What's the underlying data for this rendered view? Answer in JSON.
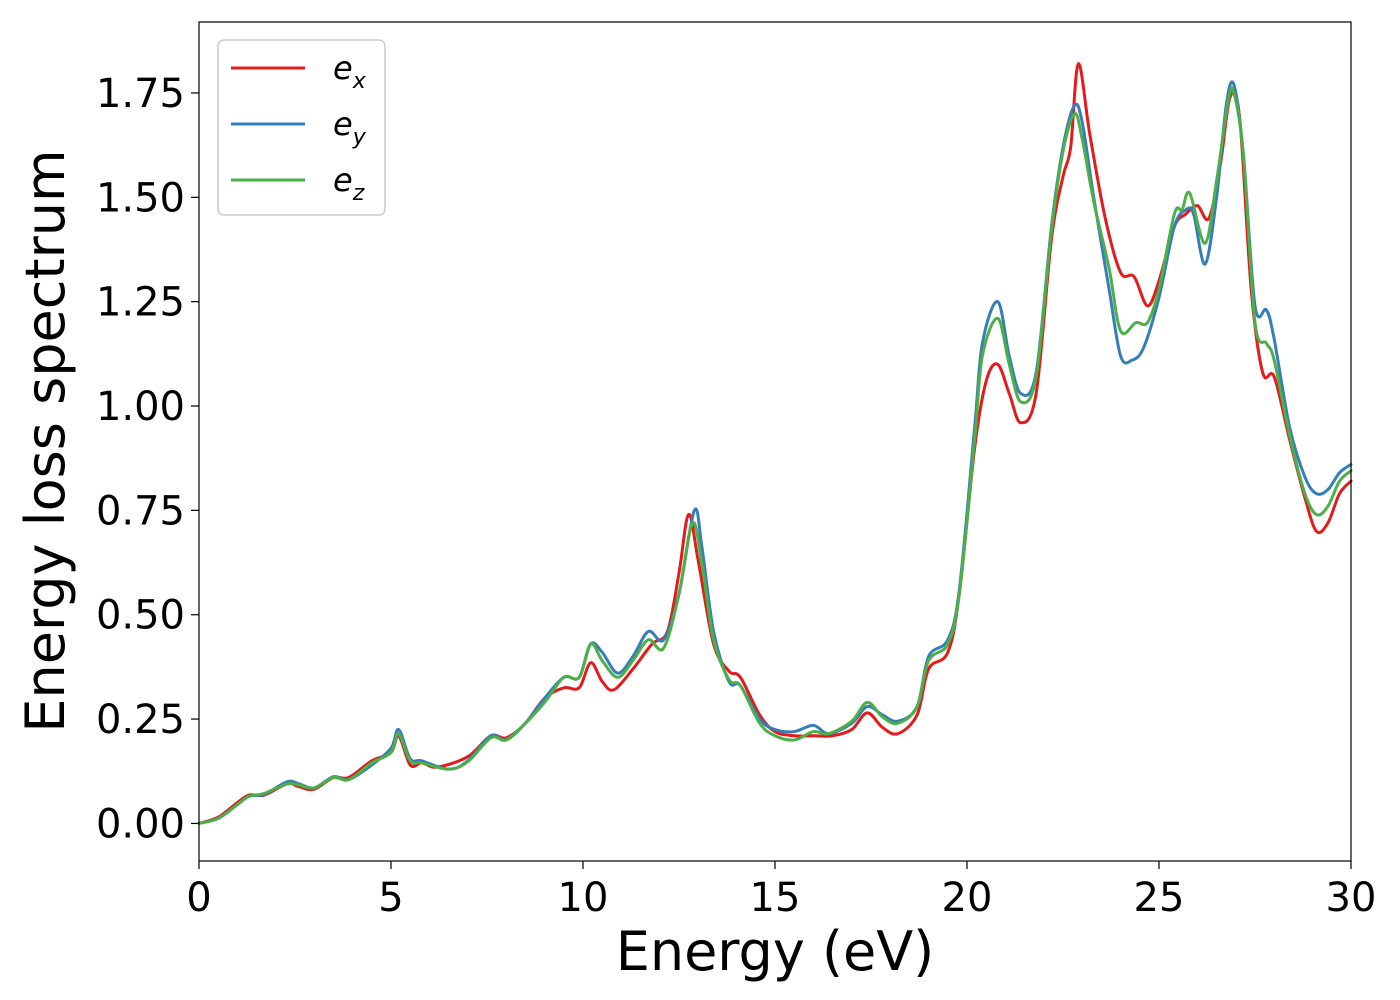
{
  "chart_data": {
    "type": "line",
    "title": "",
    "xlabel": "Energy (eV)",
    "ylabel": "Energy loss spectrum",
    "xlim": [
      0,
      30
    ],
    "ylim": [
      -0.09,
      1.92
    ],
    "xticks": [
      0,
      5,
      10,
      15,
      20,
      25,
      30
    ],
    "xtick_labels": [
      "0",
      "5",
      "10",
      "15",
      "20",
      "25",
      "30"
    ],
    "yticks": [
      0,
      0.25,
      0.5,
      0.75,
      1.0,
      1.25,
      1.5,
      1.75
    ],
    "ytick_labels": [
      "0.00",
      "0.25",
      "0.50",
      "0.75",
      "1.00",
      "1.25",
      "1.50",
      "1.75"
    ],
    "grid": false,
    "legend_position": "top-left",
    "series": [
      {
        "name": "e_x",
        "label_base": "e",
        "label_sub": "x",
        "color": "#e41a1c",
        "points": [
          [
            0,
            0
          ],
          [
            0.5,
            0.015
          ],
          [
            1,
            0.05
          ],
          [
            1.3,
            0.068
          ],
          [
            1.7,
            0.068
          ],
          [
            2.3,
            0.095
          ],
          [
            2.6,
            0.088
          ],
          [
            3.0,
            0.082
          ],
          [
            3.5,
            0.11
          ],
          [
            3.9,
            0.11
          ],
          [
            4.5,
            0.15
          ],
          [
            5.0,
            0.17
          ],
          [
            5.2,
            0.21
          ],
          [
            5.5,
            0.14
          ],
          [
            5.8,
            0.145
          ],
          [
            6.2,
            0.135
          ],
          [
            7.0,
            0.16
          ],
          [
            7.6,
            0.21
          ],
          [
            8.0,
            0.205
          ],
          [
            8.5,
            0.24
          ],
          [
            9.0,
            0.3
          ],
          [
            9.5,
            0.325
          ],
          [
            9.9,
            0.325
          ],
          [
            10.2,
            0.385
          ],
          [
            10.5,
            0.34
          ],
          [
            10.8,
            0.32
          ],
          [
            11.3,
            0.37
          ],
          [
            11.8,
            0.43
          ],
          [
            12.2,
            0.46
          ],
          [
            12.5,
            0.6
          ],
          [
            12.75,
            0.74
          ],
          [
            13.0,
            0.63
          ],
          [
            13.4,
            0.43
          ],
          [
            13.8,
            0.365
          ],
          [
            14.1,
            0.35
          ],
          [
            14.6,
            0.26
          ],
          [
            15.0,
            0.22
          ],
          [
            15.5,
            0.21
          ],
          [
            16.0,
            0.21
          ],
          [
            16.5,
            0.21
          ],
          [
            17.0,
            0.225
          ],
          [
            17.4,
            0.265
          ],
          [
            17.8,
            0.23
          ],
          [
            18.2,
            0.215
          ],
          [
            18.7,
            0.26
          ],
          [
            19.0,
            0.37
          ],
          [
            19.5,
            0.41
          ],
          [
            19.8,
            0.55
          ],
          [
            20.2,
            0.9
          ],
          [
            20.5,
            1.06
          ],
          [
            20.8,
            1.1
          ],
          [
            21.1,
            1.03
          ],
          [
            21.4,
            0.96
          ],
          [
            21.8,
            1.03
          ],
          [
            22.2,
            1.4
          ],
          [
            22.5,
            1.55
          ],
          [
            22.7,
            1.62
          ],
          [
            22.9,
            1.82
          ],
          [
            23.2,
            1.65
          ],
          [
            23.6,
            1.45
          ],
          [
            24.0,
            1.32
          ],
          [
            24.35,
            1.31
          ],
          [
            24.7,
            1.24
          ],
          [
            25.0,
            1.3
          ],
          [
            25.4,
            1.43
          ],
          [
            25.7,
            1.46
          ],
          [
            26.0,
            1.48
          ],
          [
            26.3,
            1.45
          ],
          [
            26.6,
            1.58
          ],
          [
            26.85,
            1.74
          ],
          [
            27.1,
            1.69
          ],
          [
            27.4,
            1.28
          ],
          [
            27.7,
            1.08
          ],
          [
            28.0,
            1.07
          ],
          [
            28.4,
            0.92
          ],
          [
            28.8,
            0.78
          ],
          [
            29.1,
            0.7
          ],
          [
            29.4,
            0.72
          ],
          [
            29.7,
            0.79
          ],
          [
            30,
            0.82
          ]
        ]
      },
      {
        "name": "e_y",
        "label_base": "e",
        "label_sub": "y",
        "color": "#377eb8",
        "points": [
          [
            0,
            0
          ],
          [
            0.5,
            0.012
          ],
          [
            1,
            0.045
          ],
          [
            1.3,
            0.065
          ],
          [
            1.7,
            0.07
          ],
          [
            2.3,
            0.1
          ],
          [
            2.6,
            0.095
          ],
          [
            3.0,
            0.085
          ],
          [
            3.5,
            0.112
          ],
          [
            3.9,
            0.105
          ],
          [
            4.5,
            0.14
          ],
          [
            5.0,
            0.18
          ],
          [
            5.2,
            0.225
          ],
          [
            5.5,
            0.155
          ],
          [
            5.8,
            0.15
          ],
          [
            6.5,
            0.13
          ],
          [
            7.0,
            0.15
          ],
          [
            7.6,
            0.21
          ],
          [
            8.0,
            0.2
          ],
          [
            8.5,
            0.24
          ],
          [
            9.0,
            0.3
          ],
          [
            9.5,
            0.35
          ],
          [
            9.9,
            0.35
          ],
          [
            10.2,
            0.43
          ],
          [
            10.5,
            0.41
          ],
          [
            10.9,
            0.36
          ],
          [
            11.3,
            0.4
          ],
          [
            11.7,
            0.46
          ],
          [
            12.1,
            0.44
          ],
          [
            12.5,
            0.55
          ],
          [
            12.9,
            0.75
          ],
          [
            13.1,
            0.66
          ],
          [
            13.4,
            0.46
          ],
          [
            13.8,
            0.34
          ],
          [
            14.1,
            0.33
          ],
          [
            14.6,
            0.25
          ],
          [
            15.0,
            0.225
          ],
          [
            15.5,
            0.22
          ],
          [
            16.0,
            0.235
          ],
          [
            16.4,
            0.215
          ],
          [
            17.0,
            0.24
          ],
          [
            17.4,
            0.28
          ],
          [
            17.8,
            0.26
          ],
          [
            18.2,
            0.245
          ],
          [
            18.7,
            0.28
          ],
          [
            19.0,
            0.4
          ],
          [
            19.5,
            0.44
          ],
          [
            19.8,
            0.56
          ],
          [
            20.2,
            0.95
          ],
          [
            20.4,
            1.15
          ],
          [
            20.8,
            1.25
          ],
          [
            21.1,
            1.12
          ],
          [
            21.4,
            1.03
          ],
          [
            21.8,
            1.08
          ],
          [
            22.2,
            1.43
          ],
          [
            22.5,
            1.62
          ],
          [
            22.8,
            1.72
          ],
          [
            23.0,
            1.68
          ],
          [
            23.3,
            1.5
          ],
          [
            23.7,
            1.28
          ],
          [
            24.0,
            1.12
          ],
          [
            24.3,
            1.11
          ],
          [
            24.6,
            1.14
          ],
          [
            25.0,
            1.26
          ],
          [
            25.4,
            1.43
          ],
          [
            25.7,
            1.47
          ],
          [
            25.9,
            1.46
          ],
          [
            26.2,
            1.34
          ],
          [
            26.5,
            1.5
          ],
          [
            26.75,
            1.72
          ],
          [
            26.95,
            1.77
          ],
          [
            27.2,
            1.6
          ],
          [
            27.5,
            1.24
          ],
          [
            27.8,
            1.23
          ],
          [
            28.0,
            1.16
          ],
          [
            28.4,
            0.95
          ],
          [
            28.8,
            0.83
          ],
          [
            29.1,
            0.79
          ],
          [
            29.4,
            0.8
          ],
          [
            29.7,
            0.84
          ],
          [
            30,
            0.86
          ]
        ]
      },
      {
        "name": "e_z",
        "label_base": "e",
        "label_sub": "z",
        "color": "#4daf4a",
        "points": [
          [
            0,
            0
          ],
          [
            0.5,
            0.012
          ],
          [
            1,
            0.045
          ],
          [
            1.3,
            0.065
          ],
          [
            1.7,
            0.072
          ],
          [
            2.3,
            0.095
          ],
          [
            2.6,
            0.092
          ],
          [
            3.0,
            0.085
          ],
          [
            3.5,
            0.11
          ],
          [
            3.9,
            0.105
          ],
          [
            4.5,
            0.145
          ],
          [
            5.0,
            0.17
          ],
          [
            5.2,
            0.215
          ],
          [
            5.5,
            0.15
          ],
          [
            5.8,
            0.145
          ],
          [
            6.5,
            0.13
          ],
          [
            7.0,
            0.148
          ],
          [
            7.6,
            0.205
          ],
          [
            8.0,
            0.2
          ],
          [
            8.5,
            0.24
          ],
          [
            9.0,
            0.29
          ],
          [
            9.5,
            0.35
          ],
          [
            9.9,
            0.35
          ],
          [
            10.2,
            0.43
          ],
          [
            10.5,
            0.39
          ],
          [
            10.9,
            0.35
          ],
          [
            11.3,
            0.39
          ],
          [
            11.7,
            0.44
          ],
          [
            12.1,
            0.42
          ],
          [
            12.5,
            0.55
          ],
          [
            12.85,
            0.72
          ],
          [
            13.1,
            0.62
          ],
          [
            13.4,
            0.44
          ],
          [
            13.8,
            0.345
          ],
          [
            14.1,
            0.33
          ],
          [
            14.6,
            0.24
          ],
          [
            15.0,
            0.21
          ],
          [
            15.5,
            0.2
          ],
          [
            16.0,
            0.22
          ],
          [
            16.4,
            0.215
          ],
          [
            17.0,
            0.245
          ],
          [
            17.4,
            0.29
          ],
          [
            17.8,
            0.255
          ],
          [
            18.2,
            0.24
          ],
          [
            18.7,
            0.28
          ],
          [
            19.0,
            0.39
          ],
          [
            19.5,
            0.43
          ],
          [
            19.8,
            0.55
          ],
          [
            20.2,
            0.92
          ],
          [
            20.4,
            1.12
          ],
          [
            20.8,
            1.21
          ],
          [
            21.1,
            1.1
          ],
          [
            21.4,
            1.01
          ],
          [
            21.8,
            1.07
          ],
          [
            22.2,
            1.42
          ],
          [
            22.5,
            1.61
          ],
          [
            22.8,
            1.7
          ],
          [
            23.0,
            1.64
          ],
          [
            23.3,
            1.49
          ],
          [
            23.7,
            1.33
          ],
          [
            24.0,
            1.18
          ],
          [
            24.4,
            1.2
          ],
          [
            24.7,
            1.2
          ],
          [
            25.0,
            1.28
          ],
          [
            25.4,
            1.46
          ],
          [
            25.6,
            1.47
          ],
          [
            25.8,
            1.51
          ],
          [
            26.2,
            1.39
          ],
          [
            26.5,
            1.54
          ],
          [
            26.8,
            1.73
          ],
          [
            26.95,
            1.75
          ],
          [
            27.2,
            1.6
          ],
          [
            27.5,
            1.2
          ],
          [
            27.8,
            1.15
          ],
          [
            28.0,
            1.11
          ],
          [
            28.4,
            0.93
          ],
          [
            28.8,
            0.79
          ],
          [
            29.1,
            0.74
          ],
          [
            29.4,
            0.76
          ],
          [
            29.7,
            0.82
          ],
          [
            30,
            0.845
          ]
        ]
      }
    ]
  }
}
